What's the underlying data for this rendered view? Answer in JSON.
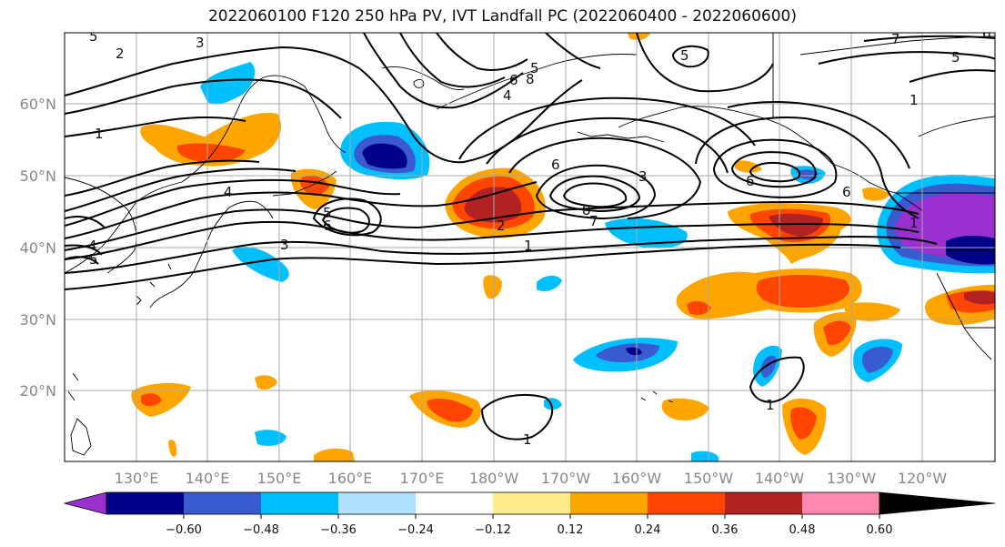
{
  "title": "2022060100 F120 250 hPa PV, IVT Landfall PC (2022060400 - 2022060600)",
  "lat_labels": [
    "60°N",
    "50°N",
    "40°N",
    "30°N",
    "20°N"
  ],
  "lon_labels": [
    "130°E",
    "140°E",
    "150°E",
    "160°E",
    "170°E",
    "180°W",
    "170°W",
    "160°W",
    "150°W",
    "140°W",
    "130°W",
    "120°W"
  ],
  "colorbar": {
    "ticks": [
      "−0.60",
      "−0.48",
      "−0.36",
      "−0.24",
      "−0.12",
      "0.12",
      "0.24",
      "0.36",
      "0.48",
      "0.60"
    ],
    "colors": [
      "#9b30d0",
      "#00008b",
      "#3a5bd0",
      "#00bfff",
      "#b0e2ff",
      "#ffffff",
      "#ffec8b",
      "#ffa500",
      "#ff4500",
      "#b22222",
      "#ff88b0"
    ]
  },
  "contour_labels": [
    "5",
    "3",
    "2",
    "1",
    "4",
    "6",
    "8",
    "7",
    "5",
    "3",
    "6",
    "1",
    "2",
    "1",
    "1",
    "1",
    "5",
    "6",
    "4",
    "5",
    "4",
    "3",
    "5",
    "6",
    "8",
    "7",
    "6",
    "5",
    "6",
    "1"
  ]
}
